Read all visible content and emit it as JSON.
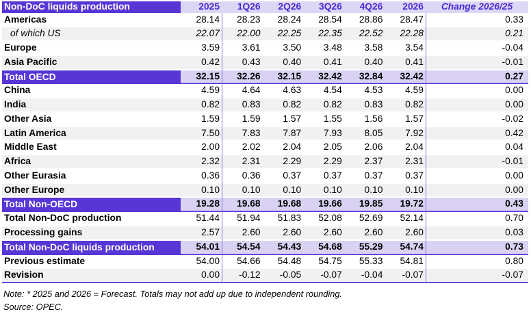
{
  "colors": {
    "dark_purple": "#5836D6",
    "lavender": "#DDD7F6",
    "total_lavender": "#D9D2F3",
    "header_text_purple": "#4C2AD1",
    "line_purple": "#8169E2",
    "border_purple": "#6748D8",
    "row_gray": "#F1F1F1"
  },
  "table": {
    "title": "Non-DoC liquids production",
    "columns": [
      "2025",
      "1Q26",
      "2Q26",
      "3Q26",
      "4Q26",
      "2026"
    ],
    "change_label": "Change 2026/25",
    "rows": [
      {
        "label": "Americas",
        "kind": "normal",
        "values": [
          "28.14",
          "28.23",
          "28.24",
          "28.54",
          "28.86",
          "28.47"
        ],
        "change": "0.33"
      },
      {
        "label": "of which US",
        "kind": "sub",
        "values": [
          "22.07",
          "22.00",
          "22.25",
          "22.35",
          "22.52",
          "22.28"
        ],
        "change": "0.21"
      },
      {
        "label": "Europe",
        "kind": "normal",
        "values": [
          "3.59",
          "3.61",
          "3.50",
          "3.48",
          "3.58",
          "3.54"
        ],
        "change": "-0.04"
      },
      {
        "label": "Asia Pacific",
        "kind": "normal",
        "values": [
          "0.42",
          "0.43",
          "0.40",
          "0.41",
          "0.40",
          "0.41"
        ],
        "change": "-0.01"
      },
      {
        "label": "Total OECD",
        "kind": "total",
        "values": [
          "32.15",
          "32.26",
          "32.15",
          "32.42",
          "32.84",
          "32.42"
        ],
        "change": "0.27"
      },
      {
        "label": "China",
        "kind": "normal",
        "values": [
          "4.59",
          "4.64",
          "4.63",
          "4.54",
          "4.53",
          "4.59"
        ],
        "change": "0.00"
      },
      {
        "label": "India",
        "kind": "normal",
        "values": [
          "0.82",
          "0.83",
          "0.82",
          "0.82",
          "0.83",
          "0.82"
        ],
        "change": "0.00"
      },
      {
        "label": "Other Asia",
        "kind": "normal",
        "values": [
          "1.59",
          "1.59",
          "1.57",
          "1.55",
          "1.56",
          "1.57"
        ],
        "change": "-0.02"
      },
      {
        "label": "Latin America",
        "kind": "normal",
        "values": [
          "7.50",
          "7.83",
          "7.87",
          "7.93",
          "8.05",
          "7.92"
        ],
        "change": "0.42"
      },
      {
        "label": "Middle East",
        "kind": "normal",
        "values": [
          "2.00",
          "2.02",
          "2.04",
          "2.05",
          "2.06",
          "2.04"
        ],
        "change": "0.04"
      },
      {
        "label": "Africa",
        "kind": "normal",
        "values": [
          "2.32",
          "2.31",
          "2.29",
          "2.29",
          "2.37",
          "2.31"
        ],
        "change": "-0.01"
      },
      {
        "label": "Other Eurasia",
        "kind": "normal",
        "values": [
          "0.36",
          "0.36",
          "0.37",
          "0.37",
          "0.37",
          "0.37"
        ],
        "change": "0.00"
      },
      {
        "label": "Other Europe",
        "kind": "normal",
        "values": [
          "0.10",
          "0.10",
          "0.10",
          "0.10",
          "0.10",
          "0.10"
        ],
        "change": "0.00"
      },
      {
        "label": "Total Non-OECD",
        "kind": "total",
        "values": [
          "19.28",
          "19.68",
          "19.68",
          "19.66",
          "19.85",
          "19.72"
        ],
        "change": "0.43"
      },
      {
        "label": "Total Non-DoC production",
        "kind": "normal",
        "values": [
          "51.44",
          "51.94",
          "51.83",
          "52.08",
          "52.69",
          "52.14"
        ],
        "change": "0.70"
      },
      {
        "label": "Processing gains",
        "kind": "normal",
        "values": [
          "2.57",
          "2.60",
          "2.60",
          "2.60",
          "2.60",
          "2.60"
        ],
        "change": "0.03"
      },
      {
        "label": "Total Non-DoC liquids production",
        "kind": "total",
        "values": [
          "54.01",
          "54.54",
          "54.43",
          "54.68",
          "55.29",
          "54.74"
        ],
        "change": "0.73"
      },
      {
        "label": "Previous estimate",
        "kind": "normal",
        "values": [
          "54.00",
          "54.66",
          "54.48",
          "54.75",
          "55.33",
          "54.81"
        ],
        "change": "0.80"
      },
      {
        "label": "Revision",
        "kind": "normal",
        "values": [
          "0.00",
          "-0.12",
          "-0.05",
          "-0.07",
          "-0.04",
          "-0.07"
        ],
        "change": "-0.07"
      }
    ],
    "note": "Note: * 2025 and 2026 = Forecast. Totals may not add up due to independent rounding.",
    "source": "Source: OPEC."
  },
  "chart_data": {
    "type": "table",
    "title": "Non-DoC liquids production",
    "columns": [
      "2025",
      "1Q26",
      "2Q26",
      "3Q26",
      "4Q26",
      "2026",
      "Change 2026/25"
    ],
    "rows": [
      [
        "Americas",
        28.14,
        28.23,
        28.24,
        28.54,
        28.86,
        28.47,
        0.33
      ],
      [
        "of which US",
        22.07,
        22.0,
        22.25,
        22.35,
        22.52,
        22.28,
        0.21
      ],
      [
        "Europe",
        3.59,
        3.61,
        3.5,
        3.48,
        3.58,
        3.54,
        -0.04
      ],
      [
        "Asia Pacific",
        0.42,
        0.43,
        0.4,
        0.41,
        0.4,
        0.41,
        -0.01
      ],
      [
        "Total OECD",
        32.15,
        32.26,
        32.15,
        32.42,
        32.84,
        32.42,
        0.27
      ],
      [
        "China",
        4.59,
        4.64,
        4.63,
        4.54,
        4.53,
        4.59,
        0.0
      ],
      [
        "India",
        0.82,
        0.83,
        0.82,
        0.82,
        0.83,
        0.82,
        0.0
      ],
      [
        "Other Asia",
        1.59,
        1.59,
        1.57,
        1.55,
        1.56,
        1.57,
        -0.02
      ],
      [
        "Latin America",
        7.5,
        7.83,
        7.87,
        7.93,
        8.05,
        7.92,
        0.42
      ],
      [
        "Middle East",
        2.0,
        2.02,
        2.04,
        2.05,
        2.06,
        2.04,
        0.04
      ],
      [
        "Africa",
        2.32,
        2.31,
        2.29,
        2.29,
        2.37,
        2.31,
        -0.01
      ],
      [
        "Other Eurasia",
        0.36,
        0.36,
        0.37,
        0.37,
        0.37,
        0.37,
        0.0
      ],
      [
        "Other Europe",
        0.1,
        0.1,
        0.1,
        0.1,
        0.1,
        0.1,
        0.0
      ],
      [
        "Total Non-OECD",
        19.28,
        19.68,
        19.68,
        19.66,
        19.85,
        19.72,
        0.43
      ],
      [
        "Total Non-DoC production",
        51.44,
        51.94,
        51.83,
        52.08,
        52.69,
        52.14,
        0.7
      ],
      [
        "Processing gains",
        2.57,
        2.6,
        2.6,
        2.6,
        2.6,
        2.6,
        0.03
      ],
      [
        "Total Non-DoC liquids production",
        54.01,
        54.54,
        54.43,
        54.68,
        55.29,
        54.74,
        0.73
      ],
      [
        "Previous estimate",
        54.0,
        54.66,
        54.48,
        54.75,
        55.33,
        54.81,
        0.8
      ],
      [
        "Revision",
        0.0,
        -0.12,
        -0.05,
        -0.07,
        -0.04,
        -0.07,
        -0.07
      ]
    ],
    "note": "Note: * 2025 and 2026 = Forecast. Totals may not add up due to independent rounding.",
    "source": "Source: OPEC."
  }
}
